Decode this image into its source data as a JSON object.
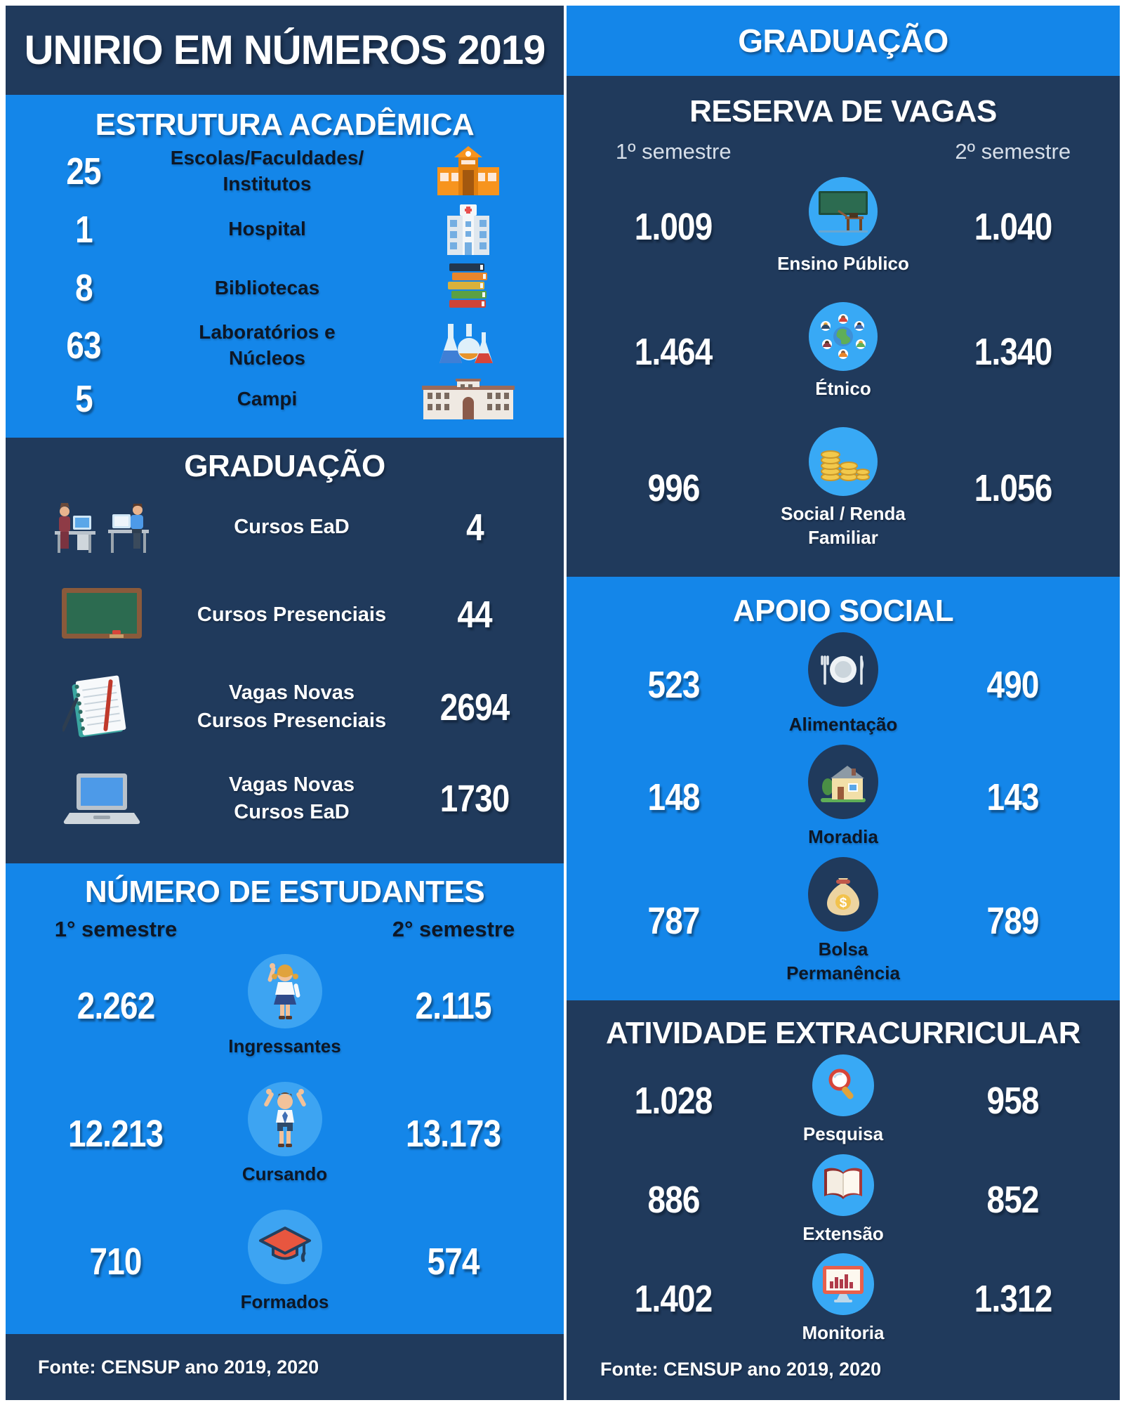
{
  "page": {
    "title": "UNIRIO EM NÚMEROS 2019",
    "footer_left": "Fonte: CENSUP ano 2019, 2020",
    "footer_right": "Fonte: CENSUP ano 2019, 2020"
  },
  "colors": {
    "navy": "#203a5c",
    "blue": "#1486e9",
    "circle_blue": "#38a9f5",
    "circle_light": "#3da4f2",
    "ink": "#0d1726",
    "paper": "#ffffff"
  },
  "left": {
    "estrutura": {
      "title": "ESTRUTURA ACADÊMICA",
      "rows": [
        {
          "value": "25",
          "label": "Escolas/Faculdades/\nInstitutos",
          "icon": "school"
        },
        {
          "value": "1",
          "label": "Hospital",
          "icon": "hospital"
        },
        {
          "value": "8",
          "label": "Bibliotecas",
          "icon": "books"
        },
        {
          "value": "63",
          "label": "Laboratórios e\nNúcleos",
          "icon": "lab"
        },
        {
          "value": "5",
          "label": "Campi",
          "icon": "campus"
        }
      ]
    },
    "graduacao": {
      "title": "GRADUAÇÃO",
      "rows": [
        {
          "icon": "ead",
          "label": "Cursos EaD",
          "value": "4"
        },
        {
          "icon": "chalkboard",
          "label": "Cursos Presenciais",
          "value": "44"
        },
        {
          "icon": "notebook",
          "label": "Vagas Novas\nCursos Presenciais",
          "value": "2694"
        },
        {
          "icon": "laptop",
          "label": "Vagas Novas\nCursos EaD",
          "value": "1730"
        }
      ]
    },
    "estudantes": {
      "title": "NÚMERO DE ESTUDANTES",
      "sem1_label": "1° semestre",
      "sem2_label": "2° semestre",
      "rows": [
        {
          "value1": "2.262",
          "icon": "student-girl",
          "caption": "Ingressantes",
          "value2": "2.115"
        },
        {
          "value1": "12.213",
          "icon": "student-boy",
          "caption": "Cursando",
          "value2": "13.173"
        },
        {
          "value1": "710",
          "icon": "grad-cap",
          "caption": "Formados",
          "value2": "574"
        }
      ]
    }
  },
  "right": {
    "header": "GRADUAÇÃO",
    "reserva": {
      "title": "RESERVA DE VAGAS",
      "sem1_label": "1º semestre",
      "sem2_label": "2º semestre",
      "rows": [
        {
          "value1": "1.009",
          "icon": "classroom",
          "caption": "Ensino Público",
          "value2": "1.040"
        },
        {
          "value1": "1.464",
          "icon": "ethnic",
          "caption": "Étnico",
          "value2": "1.340"
        },
        {
          "value1": "996",
          "icon": "coins",
          "caption": "Social / Renda\nFamiliar",
          "value2": "1.056"
        }
      ]
    },
    "apoio": {
      "title": "APOIO SOCIAL",
      "rows": [
        {
          "value1": "523",
          "icon": "plate",
          "caption": "Alimentação",
          "value2": "490"
        },
        {
          "value1": "148",
          "icon": "house",
          "caption": "Moradia",
          "value2": "143"
        },
        {
          "value1": "787",
          "icon": "money-bag",
          "caption": "Bolsa Permanência",
          "value2": "789"
        }
      ]
    },
    "atividade": {
      "title": "ATIVIDADE EXTRACURRICULAR",
      "rows": [
        {
          "value1": "1.028",
          "icon": "magnifier",
          "caption": "Pesquisa",
          "value2": "958"
        },
        {
          "value1": "886",
          "icon": "open-book",
          "caption": "Extensão",
          "value2": "852"
        },
        {
          "value1": "1.402",
          "icon": "monitor",
          "caption": "Monitoria",
          "value2": "1.312"
        }
      ]
    }
  }
}
